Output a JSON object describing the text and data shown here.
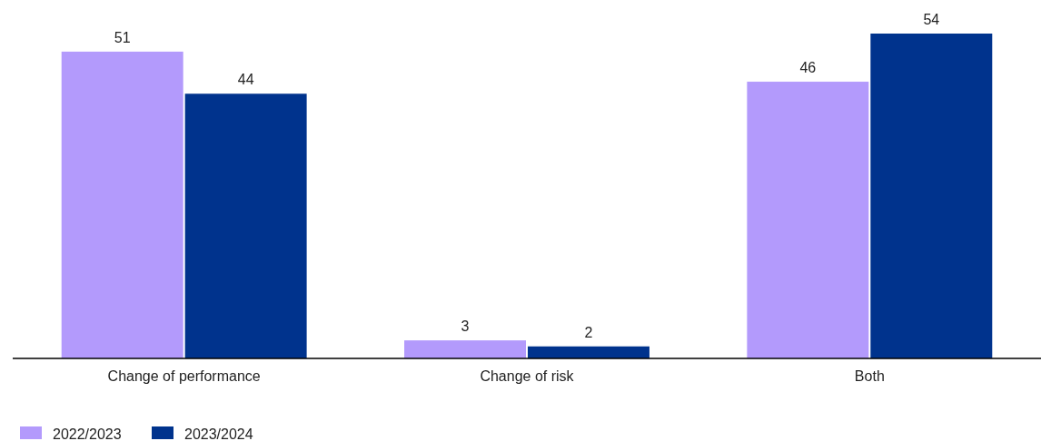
{
  "chart_data": {
    "type": "bar",
    "categories": [
      "Change of performance",
      "Change of risk",
      "Both"
    ],
    "series": [
      {
        "name": "2022/2023",
        "color": "#b39afc",
        "values": [
          51,
          3,
          46
        ]
      },
      {
        "name": "2023/2024",
        "color": "#00338d",
        "values": [
          44,
          2,
          54
        ]
      }
    ],
    "data_labels": true,
    "legend": "bottom left"
  }
}
